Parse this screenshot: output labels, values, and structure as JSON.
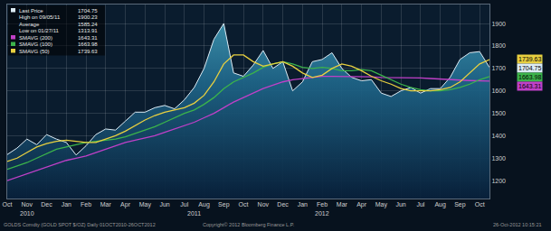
{
  "chart_data": {
    "type": "line",
    "categories": [
      "Oct",
      null,
      "Nov",
      null,
      "Dec",
      null,
      "Jan",
      null,
      "Feb",
      null,
      "Mar",
      null,
      "Apr",
      null,
      "May",
      null,
      "Jun",
      null,
      "Jul",
      null,
      "Aug",
      null,
      "Sep",
      null,
      "Oct",
      null,
      "Nov",
      null,
      "Dec",
      null,
      "Jan",
      null,
      "Feb",
      null,
      "Mar",
      null,
      "Apr",
      null,
      "May",
      null,
      "Jun",
      null,
      "Jul",
      null,
      "Aug",
      null,
      "Sep",
      null,
      "Oct",
      null
    ],
    "series": [
      {
        "name": "Last Price",
        "type": "area",
        "color": "#dcebf4",
        "values": [
          1316,
          1345,
          1385,
          1360,
          1405,
          1385,
          1370,
          1313.91,
          1355,
          1405,
          1430,
          1425,
          1465,
          1505,
          1505,
          1525,
          1535,
          1520,
          1560,
          1615,
          1700,
          1830,
          1900.23,
          1680,
          1665,
          1715,
          1780,
          1700,
          1730,
          1600,
          1640,
          1730,
          1740,
          1770,
          1700,
          1660,
          1645,
          1650,
          1590,
          1575,
          1600,
          1615,
          1590,
          1610,
          1610,
          1660,
          1740,
          1770,
          1775,
          1704.75
        ]
      },
      {
        "name": "SMAVG (200)",
        "type": "line",
        "color": "#c040c8",
        "values": [
          1200,
          1215,
          1230,
          1245,
          1260,
          1275,
          1290,
          1300,
          1310,
          1325,
          1340,
          1355,
          1370,
          1380,
          1390,
          1400,
          1415,
          1430,
          1445,
          1460,
          1480,
          1500,
          1525,
          1550,
          1570,
          1590,
          1610,
          1625,
          1640,
          1650,
          1655,
          1660,
          1665,
          1665,
          1665,
          1665,
          1665,
          1663,
          1660,
          1660,
          1660,
          1660,
          1658,
          1655,
          1652,
          1650,
          1648,
          1646,
          1644,
          1643.31
        ]
      },
      {
        "name": "SMAVG (100)",
        "type": "line",
        "color": "#3cb44b",
        "values": [
          1250,
          1265,
          1280,
          1300,
          1320,
          1340,
          1350,
          1360,
          1370,
          1375,
          1380,
          1385,
          1395,
          1410,
          1425,
          1440,
          1460,
          1480,
          1500,
          1515,
          1540,
          1570,
          1610,
          1640,
          1660,
          1680,
          1705,
          1720,
          1730,
          1720,
          1705,
          1700,
          1705,
          1700,
          1690,
          1690,
          1695,
          1690,
          1670,
          1650,
          1630,
          1615,
          1605,
          1600,
          1600,
          1605,
          1615,
          1630,
          1650,
          1663.98
        ]
      },
      {
        "name": "SMAVG (50)",
        "type": "line",
        "color": "#e8d040",
        "values": [
          1285,
          1300,
          1325,
          1350,
          1365,
          1375,
          1380,
          1375,
          1370,
          1370,
          1385,
          1400,
          1420,
          1445,
          1470,
          1490,
          1505,
          1515,
          1525,
          1545,
          1580,
          1640,
          1720,
          1760,
          1760,
          1730,
          1710,
          1720,
          1730,
          1710,
          1680,
          1660,
          1670,
          1700,
          1720,
          1710,
          1690,
          1665,
          1645,
          1630,
          1610,
          1600,
          1600,
          1600,
          1605,
          1615,
          1640,
          1680,
          1720,
          1739.63
        ]
      }
    ],
    "stats": [
      {
        "label": "High on 09/05/11",
        "value": 1900.23
      },
      {
        "label": "Average",
        "value": 1585.24
      },
      {
        "label": "Low on 01/27/11",
        "value": 1313.91
      }
    ],
    "annotations": [
      {
        "text": "2010",
        "x": 2
      },
      {
        "text": "2011",
        "x": 19
      },
      {
        "text": "2012",
        "x": 32
      }
    ],
    "footer": [
      "GOLDS Comdty (GOLD SPOT $/OZ) Daily 01OCT2010-26OCT2012",
      "Copyright© 2012 Bloomberg Finance L.P.",
      "26-Oct-2012 10:15:21"
    ],
    "ylim": [
      1120,
      1985
    ],
    "yticks": [
      1200,
      1300,
      1400,
      1500,
      1600,
      1700,
      1800,
      1900
    ],
    "grid": true,
    "legend": "upper left"
  }
}
